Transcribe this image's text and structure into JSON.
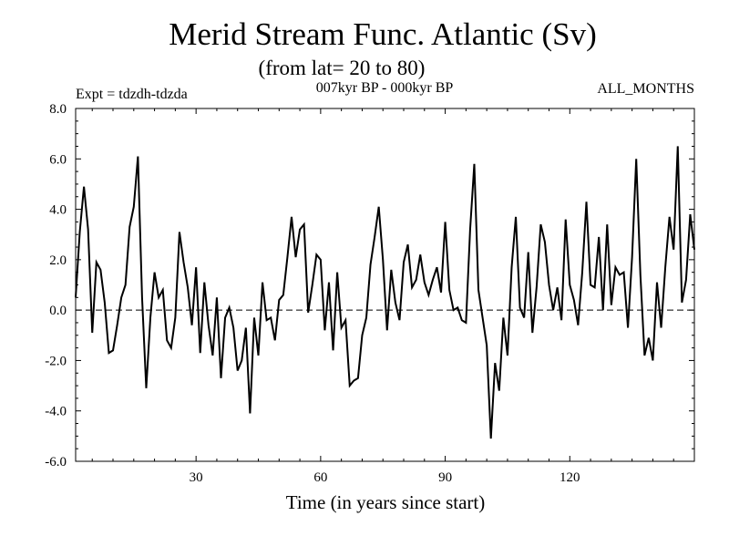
{
  "colors": {
    "background": "#ffffff",
    "line": "#000000",
    "frame": "#000000"
  },
  "chart_data": {
    "type": "line",
    "title": "Merid Stream Func. Atlantic (Sv)",
    "subtitle": "(from lat= 20 to 80)",
    "left_label": "Expt = tdzdh-tdzda",
    "center_label": "007kyr BP - 000kyr BP",
    "right_label": "ALL_MONTHS",
    "xlabel": "Time (in years since start)",
    "ylabel": "",
    "xlim": [
      1,
      150
    ],
    "ylim": [
      -6,
      8
    ],
    "x_ticks": [
      30,
      60,
      90,
      120
    ],
    "x_tick_labels": [
      "30",
      "60",
      "90",
      "120"
    ],
    "y_ticks": [
      -6,
      -4,
      -2,
      0,
      2,
      4,
      6,
      8
    ],
    "y_tick_labels": [
      "-6.0",
      "-4.0",
      "-2.0",
      "0.0",
      "2.0",
      "4.0",
      "6.0",
      "8.0"
    ],
    "zero_line": {
      "value": 0,
      "style": "dashed"
    },
    "x": [
      1,
      2,
      3,
      4,
      5,
      6,
      7,
      8,
      9,
      10,
      11,
      12,
      13,
      14,
      15,
      16,
      17,
      18,
      19,
      20,
      21,
      22,
      23,
      24,
      25,
      26,
      27,
      28,
      29,
      30,
      31,
      32,
      33,
      34,
      35,
      36,
      37,
      38,
      39,
      40,
      41,
      42,
      43,
      44,
      45,
      46,
      47,
      48,
      49,
      50,
      51,
      52,
      53,
      54,
      55,
      56,
      57,
      58,
      59,
      60,
      61,
      62,
      63,
      64,
      65,
      66,
      67,
      68,
      69,
      70,
      71,
      72,
      73,
      74,
      75,
      76,
      77,
      78,
      79,
      80,
      81,
      82,
      83,
      84,
      85,
      86,
      87,
      88,
      89,
      90,
      91,
      92,
      93,
      94,
      95,
      96,
      97,
      98,
      99,
      100,
      101,
      102,
      103,
      104,
      105,
      106,
      107,
      108,
      109,
      110,
      111,
      112,
      113,
      114,
      115,
      116,
      117,
      118,
      119,
      120,
      121,
      122,
      123,
      124,
      125,
      126,
      127,
      128,
      129,
      130,
      131,
      132,
      133,
      134,
      135,
      136,
      137,
      138,
      139,
      140,
      141,
      142,
      143,
      144,
      145,
      146,
      147,
      148,
      149,
      150
    ],
    "series": [
      {
        "name": "Merid Stream Func. Atlantic",
        "values": [
          0.5,
          3.1,
          4.9,
          3.2,
          -0.9,
          1.9,
          1.6,
          0.3,
          -1.7,
          -1.6,
          -0.6,
          0.5,
          1.0,
          3.3,
          4.1,
          6.1,
          0.5,
          -3.1,
          -0.3,
          1.5,
          0.5,
          0.8,
          -1.2,
          -1.5,
          -0.3,
          3.1,
          1.9,
          0.9,
          -0.6,
          1.7,
          -1.7,
          1.1,
          -0.6,
          -1.8,
          0.5,
          -2.7,
          -0.3,
          0.1,
          -0.7,
          -2.4,
          -2.0,
          -0.7,
          -4.1,
          -0.3,
          -1.8,
          1.1,
          -0.4,
          -0.3,
          -1.2,
          0.4,
          0.6,
          2.1,
          3.7,
          2.1,
          3.2,
          3.4,
          -0.1,
          1.0,
          2.2,
          2.0,
          -0.8,
          1.1,
          -1.6,
          1.5,
          -0.7,
          -0.4,
          -3.0,
          -2.8,
          -2.7,
          -1.0,
          -0.3,
          1.8,
          2.9,
          4.1,
          2.0,
          -0.8,
          1.6,
          0.3,
          -0.4,
          1.9,
          2.6,
          0.9,
          1.2,
          2.2,
          1.1,
          0.6,
          1.2,
          1.7,
          0.7,
          3.5,
          0.8,
          0.0,
          0.1,
          -0.4,
          -0.5,
          3.2,
          5.8,
          0.8,
          -0.3,
          -1.4,
          -5.1,
          -2.1,
          -3.2,
          -0.3,
          -1.8,
          1.7,
          3.7,
          0.1,
          -0.3,
          2.3,
          -0.9,
          0.9,
          3.4,
          2.7,
          1.0,
          0.0,
          0.9,
          -0.4,
          3.6,
          1.0,
          0.4,
          -0.6,
          1.5,
          4.3,
          1.0,
          0.9,
          2.9,
          0.0,
          3.4,
          0.2,
          1.7,
          1.4,
          1.5,
          -0.7,
          2.1,
          6.0,
          1.4,
          -1.8,
          -1.1,
          -2.0,
          1.1,
          -0.7,
          1.7,
          3.7,
          2.4,
          6.5,
          0.3,
          1.2,
          3.8,
          2.4
        ]
      }
    ]
  }
}
